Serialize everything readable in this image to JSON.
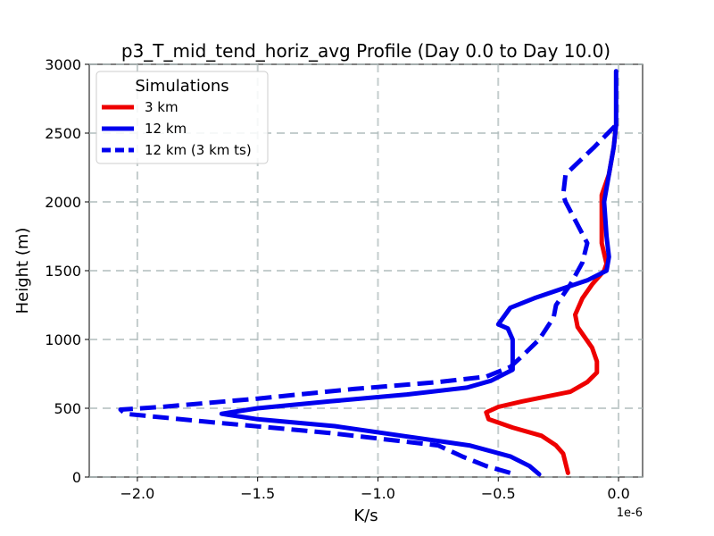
{
  "chart_data": {
    "type": "line",
    "title": "p3_T_mid_tend_horiz_avg Profile (Day 0.0 to Day 10.0)",
    "xlabel": "K/s",
    "ylabel": "Height (m)",
    "x_offset_label": "1e-6",
    "xlim": [
      -2.2,
      0.1
    ],
    "ylim": [
      0,
      3000
    ],
    "x_ticks": [
      -2.0,
      -1.5,
      -1.0,
      -0.5,
      0.0
    ],
    "x_tick_labels": [
      "−2.0",
      "−1.5",
      "−1.0",
      "−0.5",
      "0.0"
    ],
    "y_ticks": [
      0,
      500,
      1000,
      1500,
      2000,
      2500,
      3000
    ],
    "y_tick_labels": [
      "0",
      "500",
      "1000",
      "1500",
      "2000",
      "2500",
      "3000"
    ],
    "grid": true,
    "legend": {
      "title": "Simulations",
      "position": "top-left"
    },
    "series": [
      {
        "name": "3 km",
        "color": "#ee0000",
        "style": "solid",
        "points": [
          [
            -0.21,
            30
          ],
          [
            -0.22,
            100
          ],
          [
            -0.23,
            170
          ],
          [
            -0.26,
            230
          ],
          [
            -0.32,
            300
          ],
          [
            -0.44,
            360
          ],
          [
            -0.54,
            420
          ],
          [
            -0.55,
            470
          ],
          [
            -0.5,
            510
          ],
          [
            -0.4,
            550
          ],
          [
            -0.2,
            620
          ],
          [
            -0.13,
            690
          ],
          [
            -0.09,
            760
          ],
          [
            -0.09,
            840
          ],
          [
            -0.11,
            940
          ],
          [
            -0.17,
            1090
          ],
          [
            -0.18,
            1180
          ],
          [
            -0.15,
            1300
          ],
          [
            -0.11,
            1400
          ],
          [
            -0.06,
            1500
          ],
          [
            -0.05,
            1550
          ],
          [
            -0.07,
            1700
          ],
          [
            -0.07,
            1900
          ],
          [
            -0.07,
            2050
          ],
          [
            -0.04,
            2200
          ],
          [
            -0.02,
            2400
          ],
          [
            -0.01,
            2560
          ]
        ]
      },
      {
        "name": "12 km",
        "color": "#0000ee",
        "style": "solid",
        "points": [
          [
            -0.33,
            20
          ],
          [
            -0.37,
            80
          ],
          [
            -0.45,
            150
          ],
          [
            -0.62,
            230
          ],
          [
            -0.9,
            300
          ],
          [
            -1.18,
            370
          ],
          [
            -1.5,
            420
          ],
          [
            -1.65,
            460
          ],
          [
            -1.5,
            500
          ],
          [
            -1.2,
            550
          ],
          [
            -0.88,
            600
          ],
          [
            -0.63,
            650
          ],
          [
            -0.53,
            700
          ],
          [
            -0.44,
            780
          ],
          [
            -0.44,
            880
          ],
          [
            -0.44,
            1000
          ],
          [
            -0.46,
            1080
          ],
          [
            -0.5,
            1110
          ],
          [
            -0.45,
            1230
          ],
          [
            -0.35,
            1300
          ],
          [
            -0.25,
            1360
          ],
          [
            -0.13,
            1430
          ],
          [
            -0.05,
            1500
          ],
          [
            -0.04,
            1600
          ],
          [
            -0.05,
            1750
          ],
          [
            -0.06,
            2000
          ],
          [
            -0.04,
            2200
          ],
          [
            -0.02,
            2400
          ],
          [
            -0.01,
            2560
          ],
          [
            -0.01,
            2800
          ],
          [
            -0.01,
            2950
          ]
        ]
      },
      {
        "name": "12 km (3 km ts)",
        "color": "#0000ee",
        "style": "dashed",
        "points": [
          [
            -0.45,
            30
          ],
          [
            -0.55,
            80
          ],
          [
            -0.65,
            150
          ],
          [
            -0.75,
            230
          ],
          [
            -1.2,
            320
          ],
          [
            -1.7,
            400
          ],
          [
            -2.05,
            460
          ],
          [
            -2.07,
            490
          ],
          [
            -1.9,
            510
          ],
          [
            -1.5,
            570
          ],
          [
            -1.1,
            640
          ],
          [
            -0.75,
            690
          ],
          [
            -0.55,
            730
          ],
          [
            -0.45,
            800
          ],
          [
            -0.4,
            880
          ],
          [
            -0.33,
            1000
          ],
          [
            -0.27,
            1160
          ],
          [
            -0.26,
            1250
          ],
          [
            -0.2,
            1400
          ],
          [
            -0.15,
            1560
          ],
          [
            -0.13,
            1700
          ],
          [
            -0.22,
            2000
          ],
          [
            -0.23,
            2050
          ],
          [
            -0.22,
            2200
          ],
          [
            -0.1,
            2400
          ],
          [
            -0.01,
            2560
          ]
        ]
      }
    ]
  }
}
